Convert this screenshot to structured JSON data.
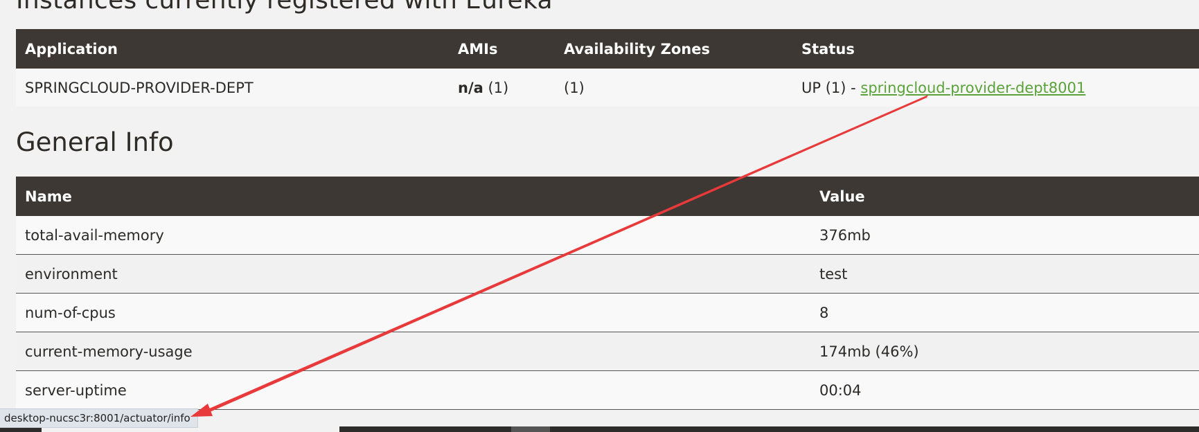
{
  "instances": {
    "title": "Instances currently registered with Eureka",
    "headers": [
      "Application",
      "AMIs",
      "Availability Zones",
      "Status"
    ],
    "row": {
      "application": "SPRINGCLOUD-PROVIDER-DEPT",
      "amis_value": "n/a",
      "amis_count": "(1)",
      "zones": "(1)",
      "status_prefix": "UP (1) - ",
      "status_link": "springcloud-provider-dept8001"
    }
  },
  "general_info": {
    "title": "General Info",
    "headers": [
      "Name",
      "Value"
    ],
    "rows": [
      {
        "name": "total-avail-memory",
        "value": "376mb"
      },
      {
        "name": "environment",
        "value": "test"
      },
      {
        "name": "num-of-cpus",
        "value": "8"
      },
      {
        "name": "current-memory-usage",
        "value": "174mb (46%)"
      },
      {
        "name": "server-uptime",
        "value": "00:04"
      }
    ]
  },
  "status_bar_url": "desktop-nucsc3r:8001/actuator/info",
  "colors": {
    "header_bg": "#3d3833",
    "link": "#5aa23a",
    "annotation_arrow": "#e8393b"
  }
}
